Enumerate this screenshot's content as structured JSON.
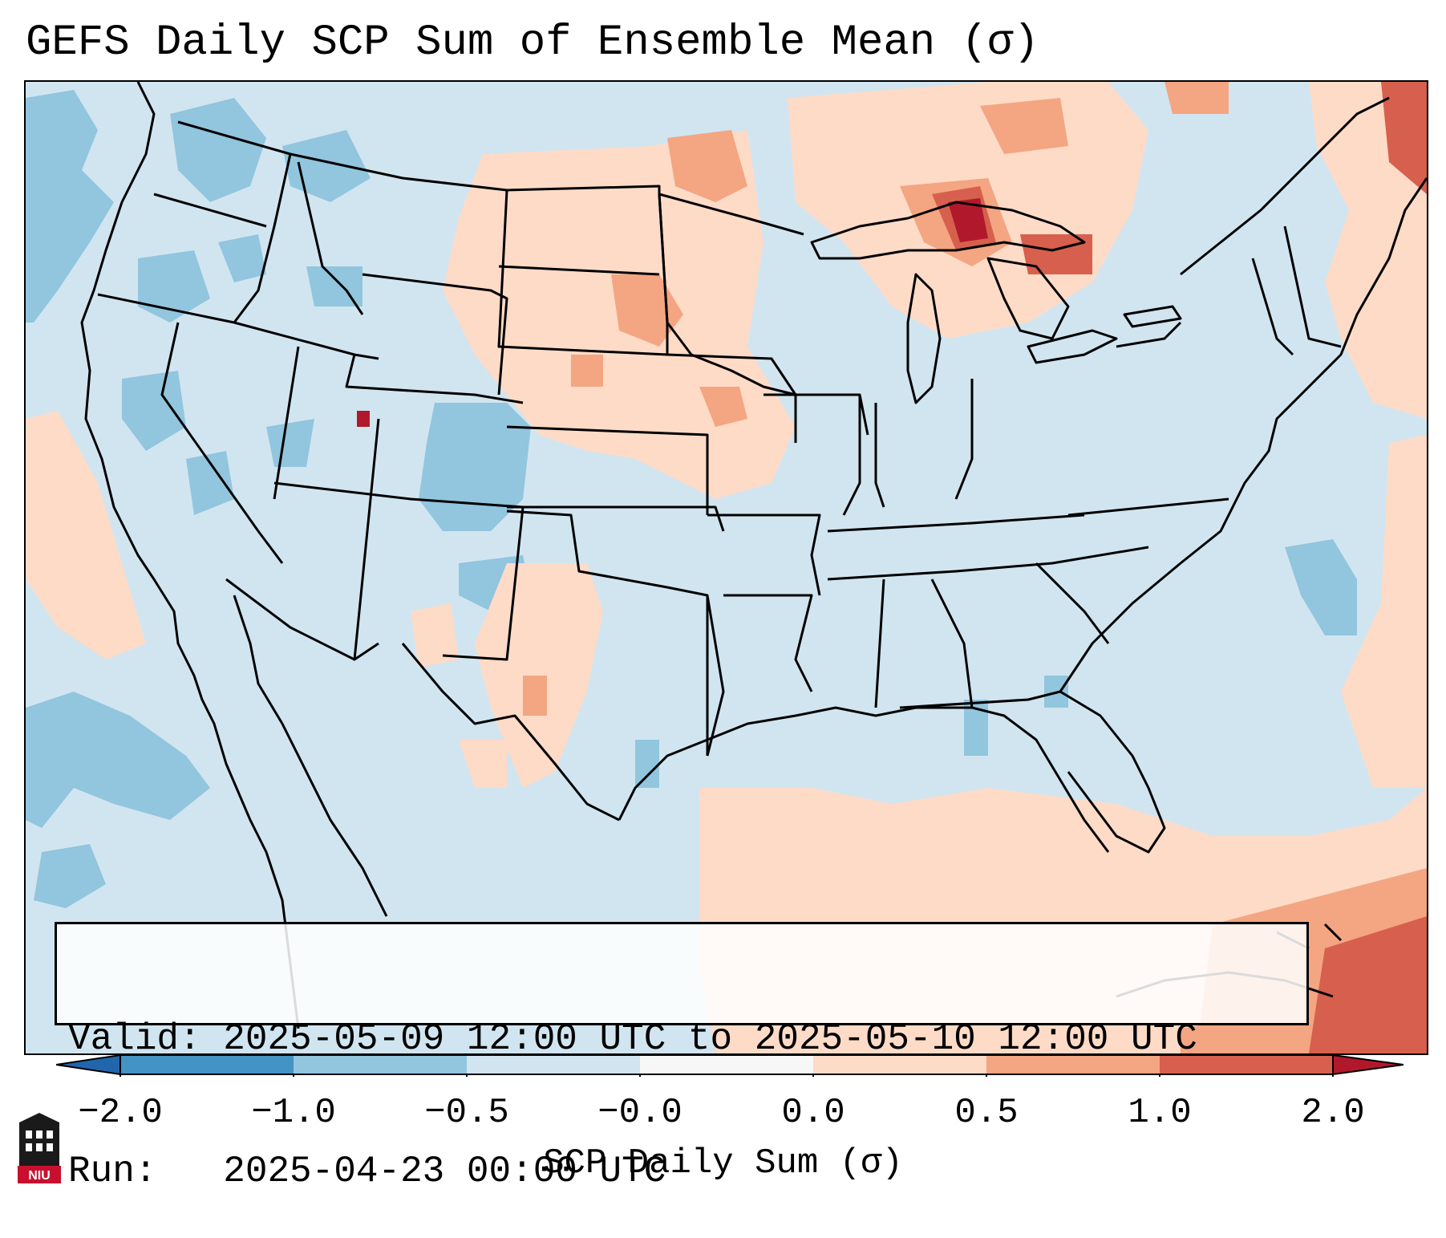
{
  "title": "GEFS Daily SCP Sum of Ensemble Mean (σ)",
  "info": {
    "valid_line": "Valid: 2025-05-09 12:00 UTC to 2025-05-10 12:00 UTC",
    "run_line": "Run:   2025-04-23 00:00 UTC"
  },
  "colorbar": {
    "label": "SCP Daily Sum (σ)",
    "ticks": [
      "−2.0",
      "−1.0",
      "−0.5",
      "−0.0",
      "0.0",
      "0.5",
      "1.0",
      "2.0"
    ],
    "bins": [
      {
        "range": "< -2.0",
        "color": "#2166ac"
      },
      {
        "range": "-2.0 to -1.0",
        "color": "#4393c3"
      },
      {
        "range": "-1.0 to -0.5",
        "color": "#92c5de"
      },
      {
        "range": "-0.5 to -0.0",
        "color": "#d1e5f0"
      },
      {
        "range": "-0.0 to 0.0",
        "color": "#f7f7f7"
      },
      {
        "range": "0.0 to 0.5",
        "color": "#fddbc7"
      },
      {
        "range": "0.5 to 1.0",
        "color": "#f4a582"
      },
      {
        "range": "1.0 to 2.0",
        "color": "#d6604d"
      },
      {
        "range": "> 2.0",
        "color": "#b2182b"
      }
    ]
  },
  "map": {
    "extent": "CONUS",
    "background_color": "#d1e5f0",
    "anomaly_regions": [
      {
        "area": "Northern Plains (Dakotas, Nebraska)",
        "level": "0.0 to 1.0"
      },
      {
        "area": "Upper Peninsula of Michigan / Lake Superior",
        "level": "1.0 to 2.0+"
      },
      {
        "area": "Southern Ontario / Quebec",
        "level": "0.0 to 1.0"
      },
      {
        "area": "Gulf of Mexico / Caribbean",
        "level": "0.0 to 1.0"
      },
      {
        "area": "Northeast Atlantic coast",
        "level": "0.0 to 1.0"
      },
      {
        "area": "Pacific Northwest offshore",
        "level": "-1.0 to -0.5"
      },
      {
        "area": "Colorado / Wyoming",
        "level": "-1.0 to -0.5"
      },
      {
        "area": "Northern Utah spot",
        "level": "> 2.0"
      }
    ]
  },
  "logo": {
    "text": "NIU"
  }
}
